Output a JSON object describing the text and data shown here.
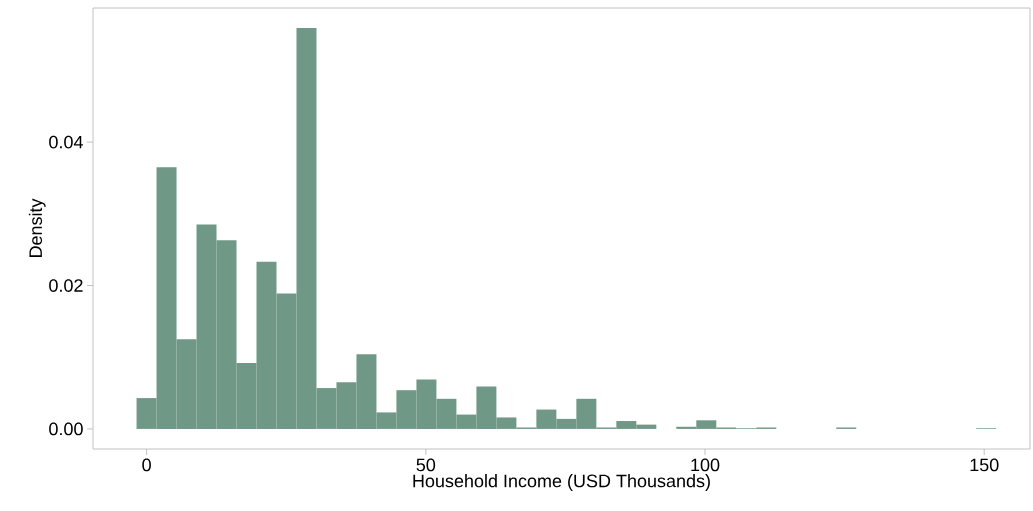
{
  "chart_data": {
    "type": "histogram",
    "xlabel": "Household Income (USD Thousands)",
    "ylabel": "Density",
    "color": "#6f9886",
    "bins": [
      -1.8,
      1.78,
      5.36,
      8.94,
      12.52,
      16.1,
      19.68,
      23.26,
      26.84,
      30.42,
      34,
      37.58,
      41.16,
      44.74,
      48.32,
      51.9,
      55.48,
      59.06,
      62.64,
      66.22,
      69.8,
      73.38,
      76.96,
      80.54,
      84.12,
      87.7,
      91.28,
      94.86,
      98.44,
      102.02,
      105.6,
      109.18,
      112.76,
      116.34,
      119.92,
      123.5,
      127.08,
      130.66,
      134.24,
      137.82,
      141.4,
      144.98,
      148.56,
      152.14
    ],
    "values": [
      0.0043,
      0.0365,
      0.0125,
      0.0285,
      0.0263,
      0.0092,
      0.0233,
      0.0189,
      0.0559,
      0.0057,
      0.0065,
      0.0104,
      0.0023,
      0.0054,
      0.0069,
      0.0042,
      0.002,
      0.0059,
      0.0016,
      0.0002,
      0.0027,
      0.0014,
      0.0042,
      0.0002,
      0.0011,
      0.0006,
      0,
      0.0003,
      0.0012,
      0.0002,
      0.0001,
      0.0002,
      0,
      0,
      0,
      0.0002,
      0,
      0,
      0,
      0,
      0,
      0,
      0.0001
    ],
    "xlim": [
      -9.6,
      158.2
    ],
    "ylim": [
      -0.0028,
      0.0587
    ],
    "xticks": [
      0,
      50,
      100,
      150
    ],
    "yticks": [
      {
        "value": 0,
        "label": "0.00"
      },
      {
        "value": 0.02,
        "label": "0.02"
      },
      {
        "value": 0.04,
        "label": "0.04"
      }
    ],
    "grid": false
  }
}
